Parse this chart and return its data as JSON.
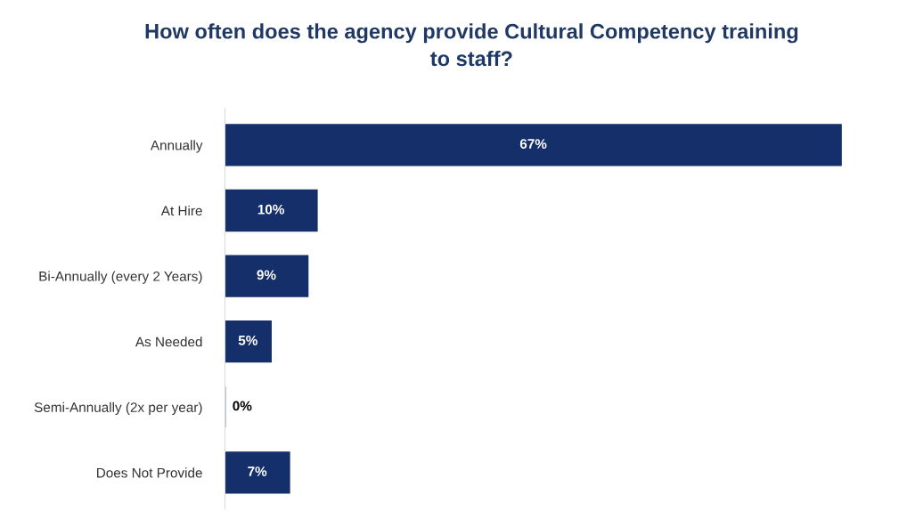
{
  "chart_data": {
    "type": "bar",
    "orientation": "horizontal",
    "title": "How often does the agency provide Cultural Competency training\nto staff?",
    "categories": [
      "Annually",
      "At Hire",
      "Bi-Annually (every 2 Years)",
      "As Needed",
      "Semi-Annually (2x per year)",
      "Does Not Provide"
    ],
    "values": [
      67,
      10,
      9,
      5,
      0,
      7
    ],
    "value_labels": [
      "67%",
      "10%",
      "9%",
      "5%",
      "0%",
      "7%"
    ],
    "color": "#152f6b",
    "grid": false,
    "legend": false
  }
}
